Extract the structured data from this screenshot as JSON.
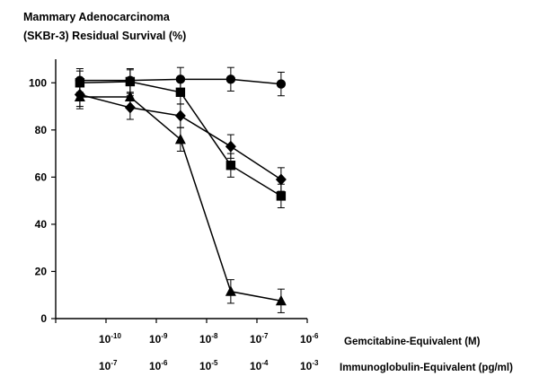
{
  "chart_data": {
    "type": "line",
    "title_lines": [
      "Mammary Adenocarcinoma",
      "(SKBr-3) Residual Survival (%)"
    ],
    "ylim": [
      0,
      110
    ],
    "yticks": [
      0,
      20,
      40,
      60,
      80,
      100
    ],
    "xlog_range": [
      -11,
      -6
    ],
    "x_axis_primary": {
      "label": "Gemcitabine-Equivalent (M)",
      "ticks": [
        {
          "base": "10",
          "exp": "-10",
          "log": -10
        },
        {
          "base": "10",
          "exp": "-9",
          "log": -9
        },
        {
          "base": "10",
          "exp": "-8",
          "log": -8
        },
        {
          "base": "10",
          "exp": "-7",
          "log": -7
        },
        {
          "base": "10",
          "exp": "-6",
          "log": -6
        }
      ]
    },
    "x_axis_secondary": {
      "label": "Immunoglobulin-Equivalent (pg/ml)",
      "ticks": [
        {
          "base": "10",
          "exp": "-7",
          "log": -10
        },
        {
          "base": "10",
          "exp": "-6",
          "log": -9
        },
        {
          "base": "10",
          "exp": "-5",
          "log": -8
        },
        {
          "base": "10",
          "exp": "-4",
          "log": -7
        },
        {
          "base": "10",
          "exp": "-3",
          "log": -6
        }
      ]
    },
    "x": [
      "3e-11",
      "3e-10",
      "3e-9",
      "3e-8",
      "3e-7"
    ],
    "x_log": [
      -10.52,
      -9.52,
      -8.52,
      -7.52,
      -6.52
    ],
    "series": [
      {
        "marker": "circle",
        "values": [
          101,
          101,
          101.5,
          101.5,
          99.5
        ],
        "errors": [
          5,
          5,
          5,
          5,
          5
        ]
      },
      {
        "marker": "square",
        "values": [
          100,
          100.5,
          96,
          65,
          52
        ],
        "errors": [
          5,
          5,
          5,
          5,
          5
        ]
      },
      {
        "marker": "diamond",
        "values": [
          95,
          89.5,
          86,
          73,
          59
        ],
        "errors": [
          5,
          5,
          5,
          5,
          5
        ]
      },
      {
        "marker": "triangle",
        "values": [
          94,
          94,
          76,
          11.5,
          7.5
        ],
        "errors": [
          5,
          5,
          5,
          5,
          5
        ]
      }
    ]
  }
}
